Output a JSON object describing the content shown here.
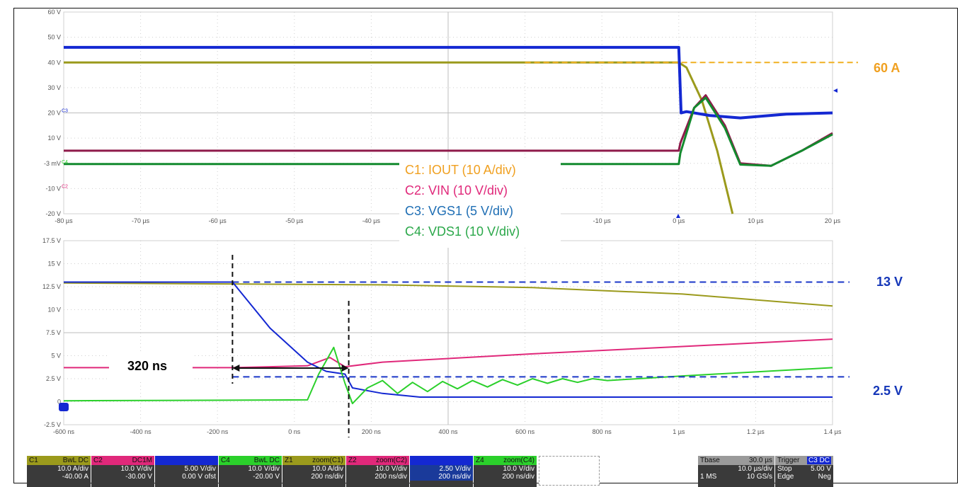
{
  "colors": {
    "c1": "#9b9a1c",
    "c2": "#e0287a",
    "c3": "#1428d2",
    "c4": "#2bd02b",
    "c4dark": "#138a2e",
    "c2dark": "#8e1a4a",
    "c3dark": "#12208a",
    "orange": "#f0a020",
    "blue_label": "#1436b8",
    "legend_c3": "#1e6eb4",
    "legend_c4": "#2ba84a",
    "legend_c2": "#e0287a"
  },
  "chart_data": [
    {
      "type": "line",
      "title": "",
      "y_ticks": [
        "60 V",
        "50 V",
        "40 V",
        "30 V",
        "20 V",
        "10 V",
        "-3 mV",
        "-10 V",
        "-20 V"
      ],
      "x_ticks": [
        "-80 µs",
        "-70 µs",
        "-60 µs",
        "-50 µs",
        "-40 µs",
        "",
        "",
        "-10 µs",
        "0 µs",
        "10 µs",
        "20 µs"
      ],
      "xlim": [
        -80,
        20
      ],
      "ylim": [
        -20,
        60
      ],
      "channel_markers": [
        "C3",
        "C4",
        "C2"
      ],
      "series": [
        {
          "name": "C1",
          "x": [
            -80,
            0,
            1,
            3,
            5,
            7
          ],
          "values": [
            40,
            40,
            38,
            25,
            5,
            -20
          ]
        },
        {
          "name": "C2",
          "x": [
            -80,
            0,
            0.2,
            2,
            3.5,
            6,
            8,
            12,
            16,
            20
          ],
          "values": [
            5,
            5,
            8,
            22,
            27,
            15,
            0,
            -1,
            5,
            12
          ]
        },
        {
          "name": "C3",
          "x": [
            -80,
            0,
            0.3,
            1,
            4,
            8,
            14,
            20
          ],
          "values": [
            46,
            46,
            20,
            20.5,
            19,
            18,
            19.5,
            20
          ]
        },
        {
          "name": "C4",
          "x": [
            -80,
            0,
            0.2,
            2,
            3.5,
            6,
            8,
            12,
            16,
            20
          ],
          "values": [
            -0.3,
            -0.3,
            4,
            22,
            26,
            14,
            -0.5,
            -1,
            5,
            11.5
          ]
        }
      ],
      "reference_line": {
        "label": "60 A",
        "y": 40
      }
    },
    {
      "type": "line",
      "title": "",
      "y_ticks": [
        "17.5 V",
        "15 V",
        "12.5 V",
        "10 V",
        "7.5 V",
        "5 V",
        "2.5 V",
        "0",
        "-2.5 V"
      ],
      "x_ticks": [
        "-600 ns",
        "-400 ns",
        "-200 ns",
        "0 ns",
        "200 ns",
        "400 ns",
        "600 ns",
        "800 ns",
        "1 µs",
        "1.2 µs",
        "1.4 µs"
      ],
      "xlim": [
        -650,
        1400
      ],
      "ylim": [
        -2.5,
        17.5
      ],
      "series": [
        {
          "name": "C1",
          "x": [
            -650,
            200,
            600,
            1000,
            1400
          ],
          "values": [
            12.9,
            12.7,
            12.4,
            11.7,
            10.4
          ]
        },
        {
          "name": "C2",
          "x": [
            -650,
            -200,
            0,
            60,
            100,
            200,
            600,
            1000,
            1400
          ],
          "values": [
            3.7,
            3.7,
            3.9,
            4.8,
            3.8,
            4.3,
            5.2,
            6.0,
            6.8
          ]
        },
        {
          "name": "C3",
          "x": [
            -650,
            -200,
            -100,
            0,
            50,
            100,
            120,
            200,
            300,
            1400
          ],
          "values": [
            13.0,
            13.0,
            8.0,
            4.3,
            3.3,
            3.0,
            1.5,
            0.9,
            0.5,
            0.5
          ]
        },
        {
          "name": "C4",
          "x": [
            -650,
            0,
            30,
            70,
            100,
            120,
            160,
            200,
            240,
            280,
            320,
            360,
            400,
            440,
            480,
            520,
            560,
            600,
            640,
            680,
            720,
            760,
            800,
            1000,
            1400
          ],
          "values": [
            0.1,
            0.2,
            3.0,
            5.9,
            2.0,
            -0.2,
            1.5,
            2.3,
            0.9,
            2.1,
            1.1,
            2.2,
            1.4,
            2.3,
            1.6,
            2.4,
            1.8,
            2.5,
            2.0,
            2.5,
            2.1,
            2.5,
            2.3,
            2.8,
            3.7
          ]
        }
      ],
      "annotations": [
        {
          "text": "13 V",
          "y": 13.0
        },
        {
          "text": "2.5 V",
          "y": 2.7
        },
        {
          "text": "320 ns",
          "x_from": -200,
          "x_to": 110
        }
      ]
    }
  ],
  "legend": [
    {
      "label": "C1: IOUT (10 A/div)"
    },
    {
      "label": "C2: VIN (10 V/div)"
    },
    {
      "label": "C3: VGS1 (5 V/div)"
    },
    {
      "label": "C4: VDS1 (10 V/div)"
    }
  ],
  "bottom_bar": {
    "channels": [
      {
        "name": "C1",
        "tags": "BwL DC",
        "l1": "10.0 A/div",
        "l2": "-40.00 A",
        "color": "#9b9a1c"
      },
      {
        "name": "C2",
        "tags": "DC1M",
        "l1": "10.0 V/div",
        "l2": "-30.00 V",
        "color": "#e0287a"
      },
      {
        "name": "",
        "tags": "",
        "l1": "5.00 V/div",
        "l2": "0.00 V ofst",
        "color": "#1428d2"
      },
      {
        "name": "C4",
        "tags": "BwL DC",
        "l1": "10.0 V/div",
        "l2": "-20.00 V",
        "color": "#2bd02b"
      },
      {
        "name": "Z1",
        "tags": "zoom(C1)",
        "l1": "10.0 A/div",
        "l2": "200 ns/div",
        "color": "#9b9a1c"
      },
      {
        "name": "Z2",
        "tags": "zoom(C2)",
        "l1": "10.0 V/div",
        "l2": "200 ns/div",
        "color": "#e0287a"
      },
      {
        "name": "",
        "tags": "",
        "l1": "2.50 V/div",
        "l2": "200 ns/div",
        "color": "#1428d2"
      },
      {
        "name": "Z4",
        "tags": "zoom(C4)",
        "l1": "10.0 V/div",
        "l2": "200 ns/div",
        "color": "#2bd02b"
      }
    ],
    "timebase": {
      "label": "Tbase",
      "value": "30.0 µs",
      "l1": "10.0 µs/div",
      "l2a": "1 MS",
      "l2b": "10 GS/s"
    },
    "trigger": {
      "label": "Trigger",
      "tag": "C3 DC",
      "r1a": "Stop",
      "r1b": "5.00 V",
      "r2a": "Edge",
      "r2b": "Neg"
    }
  }
}
